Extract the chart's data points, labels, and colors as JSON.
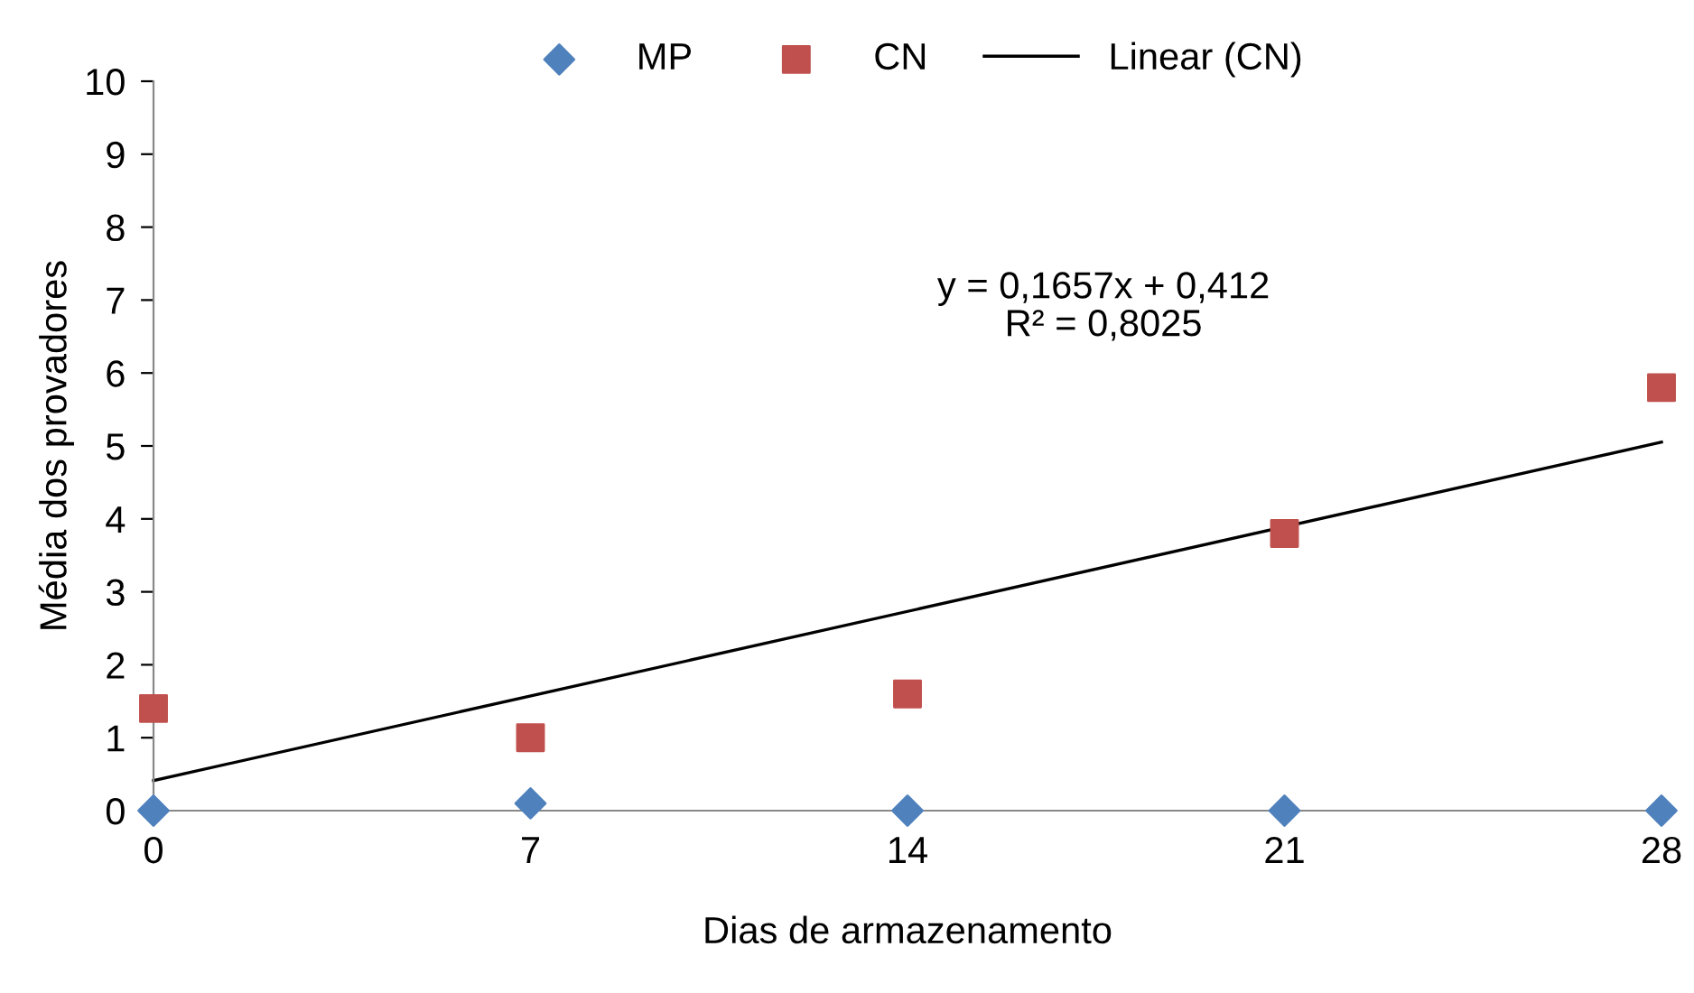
{
  "chart_data": {
    "type": "scatter",
    "xlabel": "Dias de armazenamento",
    "ylabel": "Média dos provadores",
    "x": [
      0,
      7,
      14,
      21,
      28
    ],
    "series": [
      {
        "name": "MP",
        "color": "#4f81bd",
        "marker": "diamond",
        "values": [
          0,
          0.1,
          0,
          0,
          0
        ]
      },
      {
        "name": "CN",
        "color": "#c0504d",
        "marker": "square",
        "values": [
          1.4,
          1.0,
          1.6,
          3.8,
          5.8
        ]
      },
      {
        "name": "Linear (CN)",
        "type": "line",
        "color": "#000000",
        "marker": "none",
        "line_style": "solid",
        "x": [
          0,
          28
        ],
        "values": [
          0.412,
          5.052
        ]
      }
    ],
    "annotations": [
      "y = 0,1657x + 0,412\nR² = 0,8025"
    ],
    "xlim": [
      0,
      28
    ],
    "xticks": [
      0,
      7,
      14,
      21,
      28
    ],
    "ylim": [
      0,
      10
    ],
    "yticks": [
      0,
      1,
      2,
      3,
      4,
      5,
      6,
      7,
      8,
      9,
      10
    ],
    "grid": false,
    "legend": "top"
  }
}
